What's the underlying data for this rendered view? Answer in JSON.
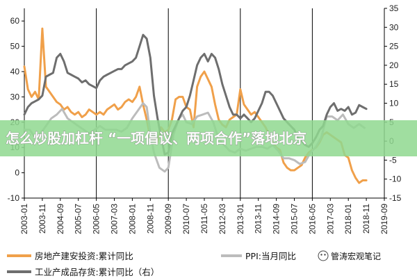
{
  "chart_data": {
    "type": "line",
    "x_start": "2003-01",
    "x_end": "2019-09",
    "x_tick_labels": [
      "2003-01",
      "2003-11",
      "2004-09",
      "2005-07",
      "2006-05",
      "2007-03",
      "2008-01",
      "2008-11",
      "2009-09",
      "2010-07",
      "2011-05",
      "2012-03",
      "2013-01",
      "2013-11",
      "2014-09",
      "2015-07",
      "2016-05",
      "2017-03",
      "2018-01",
      "2018-11",
      "2019-09"
    ],
    "vertical_lines": [
      "2006-05",
      "2009-09",
      "2013-01",
      "2016-05",
      "2019-09"
    ],
    "left_axis": {
      "ylim": [
        -10,
        65
      ],
      "ticks": [
        -10,
        0,
        10,
        20,
        30,
        40,
        50,
        60
      ]
    },
    "right_axis": {
      "ylim": [
        -15,
        35
      ],
      "ticks": [
        -15,
        -10,
        -5,
        0,
        5,
        10,
        15,
        20,
        25,
        30,
        35
      ]
    },
    "grid": false,
    "legend_position": "bottom",
    "series": [
      {
        "name": "房地产建安投资:累计同比",
        "axis": "left",
        "color": "#f0a04a",
        "points": [
          [
            "2003-01",
            42
          ],
          [
            "2003-03",
            33
          ],
          [
            "2003-05",
            30
          ],
          [
            "2003-07",
            32
          ],
          [
            "2003-09",
            29
          ],
          [
            "2003-11",
            57
          ],
          [
            "2004-01",
            34
          ],
          [
            "2004-03",
            32
          ],
          [
            "2004-05",
            30
          ],
          [
            "2004-07",
            28
          ],
          [
            "2004-09",
            27
          ],
          [
            "2004-11",
            25
          ],
          [
            "2005-01",
            26
          ],
          [
            "2005-03",
            24
          ],
          [
            "2005-05",
            23
          ],
          [
            "2005-07",
            24
          ],
          [
            "2005-09",
            22
          ],
          [
            "2005-11",
            23
          ],
          [
            "2006-01",
            25
          ],
          [
            "2006-03",
            24
          ],
          [
            "2006-05",
            23
          ],
          [
            "2006-07",
            24
          ],
          [
            "2006-09",
            23
          ],
          [
            "2006-11",
            25
          ],
          [
            "2007-01",
            26
          ],
          [
            "2007-03",
            27
          ],
          [
            "2007-05",
            25
          ],
          [
            "2007-07",
            26
          ],
          [
            "2007-09",
            28
          ],
          [
            "2007-11",
            29
          ],
          [
            "2008-01",
            28
          ],
          [
            "2008-03",
            30
          ],
          [
            "2008-05",
            34
          ],
          [
            "2008-07",
            27
          ],
          [
            "2008-09",
            21
          ],
          [
            "2008-11",
            14
          ],
          [
            "2009-01",
            13
          ],
          [
            "2009-03",
            12
          ],
          [
            "2009-05",
            18
          ],
          [
            "2009-07",
            16
          ],
          [
            "2009-09",
            17
          ],
          [
            "2009-11",
            21
          ],
          [
            "2010-01",
            29
          ],
          [
            "2010-03",
            30
          ],
          [
            "2010-05",
            30
          ],
          [
            "2010-07",
            26
          ],
          [
            "2010-09",
            25
          ],
          [
            "2010-11",
            18
          ],
          [
            "2011-01",
            34
          ],
          [
            "2011-03",
            38
          ],
          [
            "2011-05",
            40
          ],
          [
            "2011-07",
            37
          ],
          [
            "2011-09",
            34
          ],
          [
            "2011-11",
            27
          ],
          [
            "2012-01",
            21
          ],
          [
            "2012-03",
            19
          ],
          [
            "2012-05",
            18
          ],
          [
            "2012-07",
            21
          ],
          [
            "2012-09",
            22
          ],
          [
            "2012-11",
            23
          ],
          [
            "2013-01",
            33
          ],
          [
            "2013-03",
            27
          ],
          [
            "2013-05",
            25
          ],
          [
            "2013-07",
            23
          ],
          [
            "2013-09",
            24
          ],
          [
            "2013-11",
            22
          ],
          [
            "2014-01",
            20
          ],
          [
            "2014-03",
            18
          ],
          [
            "2014-05",
            15
          ],
          [
            "2014-07",
            12
          ],
          [
            "2014-09",
            10
          ],
          [
            "2014-11",
            9
          ],
          [
            "2015-01",
            4
          ],
          [
            "2015-03",
            2
          ],
          [
            "2015-05",
            1
          ],
          [
            "2015-07",
            1
          ],
          [
            "2015-09",
            2
          ],
          [
            "2015-11",
            3
          ],
          [
            "2016-01",
            6
          ],
          [
            "2016-03",
            8
          ],
          [
            "2016-05",
            9
          ],
          [
            "2016-07",
            10
          ],
          [
            "2016-09",
            12
          ],
          [
            "2016-11",
            15
          ],
          [
            "2017-01",
            16
          ],
          [
            "2017-03",
            15
          ],
          [
            "2017-05",
            14
          ],
          [
            "2017-07",
            13
          ],
          [
            "2017-09",
            12
          ],
          [
            "2017-11",
            7
          ],
          [
            "2018-01",
            6
          ],
          [
            "2018-03",
            1
          ],
          [
            "2018-05",
            -2
          ],
          [
            "2018-07",
            -4
          ],
          [
            "2018-09",
            -3
          ],
          [
            "2018-11",
            -3
          ]
        ]
      },
      {
        "name": "PPI:当月同比",
        "axis": "right",
        "color": "#bcbcbc",
        "points": [
          [
            "2003-01",
            3
          ],
          [
            "2003-04",
            3
          ],
          [
            "2003-07",
            1
          ],
          [
            "2003-10",
            2
          ],
          [
            "2004-01",
            4
          ],
          [
            "2004-04",
            6
          ],
          [
            "2004-07",
            7
          ],
          [
            "2004-10",
            8.5
          ],
          [
            "2005-01",
            6
          ],
          [
            "2005-04",
            5
          ],
          [
            "2005-07",
            4
          ],
          [
            "2005-10",
            3
          ],
          [
            "2006-01",
            2
          ],
          [
            "2006-04",
            3
          ],
          [
            "2006-07",
            4
          ],
          [
            "2006-10",
            3
          ],
          [
            "2007-01",
            3
          ],
          [
            "2007-04",
            3
          ],
          [
            "2007-07",
            2.5
          ],
          [
            "2007-10",
            3.5
          ],
          [
            "2008-01",
            6
          ],
          [
            "2008-04",
            8
          ],
          [
            "2008-07",
            10
          ],
          [
            "2008-09",
            9
          ],
          [
            "2008-11",
            2
          ],
          [
            "2009-01",
            -3
          ],
          [
            "2009-04",
            -7
          ],
          [
            "2009-07",
            -8
          ],
          [
            "2009-09",
            -7
          ],
          [
            "2009-12",
            2
          ],
          [
            "2010-03",
            6
          ],
          [
            "2010-05",
            7
          ],
          [
            "2010-07",
            5
          ],
          [
            "2010-10",
            4.5
          ],
          [
            "2011-01",
            6.5
          ],
          [
            "2011-04",
            7
          ],
          [
            "2011-07",
            7.5
          ],
          [
            "2011-10",
            5
          ],
          [
            "2012-01",
            0.5
          ],
          [
            "2012-04",
            -1
          ],
          [
            "2012-07",
            -2.5
          ],
          [
            "2012-10",
            -3
          ],
          [
            "2013-01",
            -2
          ],
          [
            "2013-04",
            -2.5
          ],
          [
            "2013-07",
            -2
          ],
          [
            "2013-10",
            -1.5
          ],
          [
            "2014-01",
            -1.5
          ],
          [
            "2014-04",
            -2
          ],
          [
            "2014-07",
            -1
          ],
          [
            "2014-10",
            -2.5
          ],
          [
            "2015-01",
            -4.5
          ],
          [
            "2015-04",
            -4.5
          ],
          [
            "2015-07",
            -5
          ],
          [
            "2015-10",
            -6
          ],
          [
            "2016-01",
            -5.5
          ],
          [
            "2016-04",
            -3
          ],
          [
            "2016-07",
            -1.5
          ],
          [
            "2016-10",
            1
          ],
          [
            "2017-01",
            6.5
          ],
          [
            "2017-04",
            6.5
          ],
          [
            "2017-07",
            5.5
          ],
          [
            "2017-10",
            7
          ],
          [
            "2018-01",
            4.5
          ],
          [
            "2018-04",
            3.5
          ],
          [
            "2018-07",
            4.5
          ],
          [
            "2018-10",
            3.5
          ]
        ]
      },
      {
        "name": "工业产成品存货:累计同比（右）",
        "axis": "right",
        "color": "#6e6e6e",
        "points": [
          [
            "2003-01",
            7
          ],
          [
            "2003-03",
            9
          ],
          [
            "2003-05",
            10
          ],
          [
            "2003-07",
            10.5
          ],
          [
            "2003-09",
            11
          ],
          [
            "2003-11",
            12
          ],
          [
            "2004-01",
            17
          ],
          [
            "2004-03",
            17.5
          ],
          [
            "2004-05",
            18
          ],
          [
            "2004-07",
            22
          ],
          [
            "2004-09",
            23
          ],
          [
            "2004-11",
            21
          ],
          [
            "2005-01",
            18
          ],
          [
            "2005-03",
            17.5
          ],
          [
            "2005-05",
            17
          ],
          [
            "2005-07",
            16.5
          ],
          [
            "2005-09",
            15.5
          ],
          [
            "2005-11",
            16
          ],
          [
            "2006-01",
            15
          ],
          [
            "2006-03",
            14.5
          ],
          [
            "2006-05",
            14
          ],
          [
            "2006-07",
            16
          ],
          [
            "2006-09",
            17
          ],
          [
            "2006-11",
            17.5
          ],
          [
            "2007-01",
            18
          ],
          [
            "2007-03",
            18.5
          ],
          [
            "2007-05",
            19
          ],
          [
            "2007-07",
            19
          ],
          [
            "2007-09",
            20
          ],
          [
            "2007-11",
            20.5
          ],
          [
            "2008-01",
            21
          ],
          [
            "2008-03",
            22
          ],
          [
            "2008-05",
            25
          ],
          [
            "2008-07",
            28
          ],
          [
            "2008-09",
            27
          ],
          [
            "2008-11",
            22
          ],
          [
            "2009-01",
            12
          ],
          [
            "2009-03",
            6
          ],
          [
            "2009-05",
            1
          ],
          [
            "2009-07",
            -3.5
          ],
          [
            "2009-09",
            -3
          ],
          [
            "2009-11",
            2
          ],
          [
            "2010-01",
            4
          ],
          [
            "2010-03",
            6
          ],
          [
            "2010-05",
            8
          ],
          [
            "2010-07",
            9
          ],
          [
            "2010-09",
            12
          ],
          [
            "2010-11",
            16
          ],
          [
            "2011-01",
            20
          ],
          [
            "2011-03",
            22
          ],
          [
            "2011-05",
            23
          ],
          [
            "2011-07",
            21
          ],
          [
            "2011-09",
            23
          ],
          [
            "2011-11",
            22
          ],
          [
            "2012-01",
            19
          ],
          [
            "2012-03",
            15
          ],
          [
            "2012-05",
            12
          ],
          [
            "2012-07",
            9
          ],
          [
            "2012-09",
            7
          ],
          [
            "2012-11",
            7
          ],
          [
            "2013-01",
            6
          ],
          [
            "2013-03",
            7
          ],
          [
            "2013-05",
            6
          ],
          [
            "2013-07",
            5
          ],
          [
            "2013-09",
            6
          ],
          [
            "2013-11",
            8
          ],
          [
            "2014-01",
            10
          ],
          [
            "2014-03",
            13
          ],
          [
            "2014-05",
            13
          ],
          [
            "2014-07",
            12
          ],
          [
            "2014-09",
            10
          ],
          [
            "2014-11",
            8
          ],
          [
            "2015-01",
            6
          ],
          [
            "2015-03",
            5
          ],
          [
            "2015-05",
            4
          ],
          [
            "2015-07",
            3
          ],
          [
            "2015-09",
            1
          ],
          [
            "2015-11",
            0
          ],
          [
            "2016-01",
            -1
          ],
          [
            "2016-03",
            -1.5
          ],
          [
            "2016-05",
            -0.5
          ],
          [
            "2016-07",
            1
          ],
          [
            "2016-09",
            3
          ],
          [
            "2016-11",
            4
          ],
          [
            "2017-01",
            7
          ],
          [
            "2017-03",
            9
          ],
          [
            "2017-05",
            10
          ],
          [
            "2017-07",
            8
          ],
          [
            "2017-09",
            8.5
          ],
          [
            "2017-11",
            8
          ],
          [
            "2018-01",
            9
          ],
          [
            "2018-03",
            7
          ],
          [
            "2018-05",
            7.5
          ],
          [
            "2018-07",
            9.5
          ],
          [
            "2018-09",
            9
          ],
          [
            "2018-11",
            8.5
          ]
        ]
      }
    ]
  },
  "legend": [
    {
      "label": "房地产建安投资:累计同比",
      "color": "#f0a04a"
    },
    {
      "label": "PPI:当月同比",
      "color": "#bcbcbc"
    },
    {
      "label": "工业产成品存货:累计同比（右）",
      "color": "#6e6e6e"
    }
  ],
  "overlay": {
    "banner_text": "怎么炒股加杠杆 “一项倡议、两项合作”落地北京",
    "banner_color": "#8fd88f",
    "watermark_text": "管涛宏观笔记"
  }
}
